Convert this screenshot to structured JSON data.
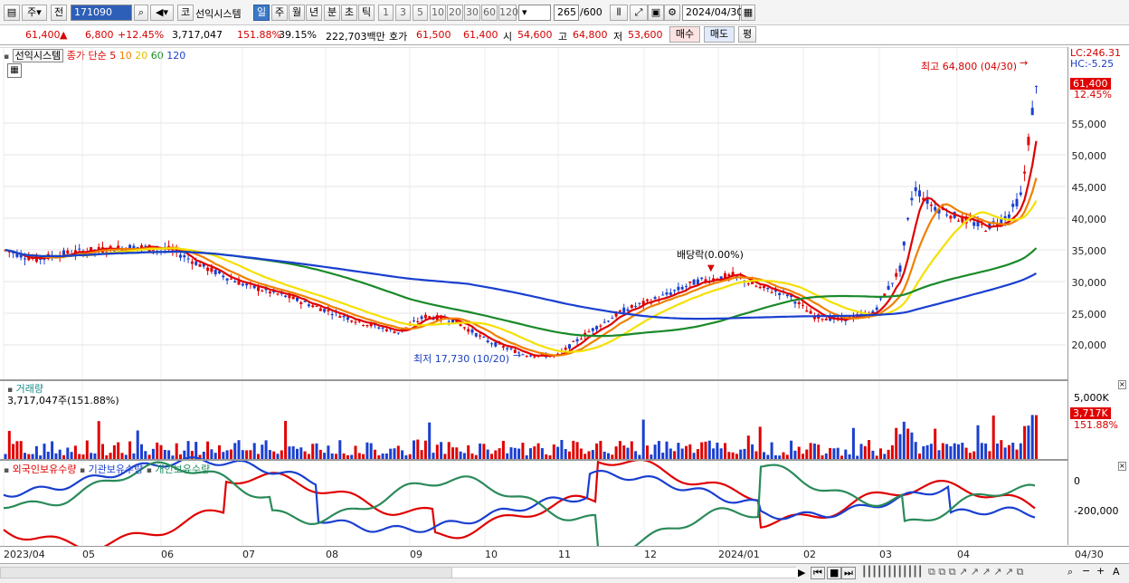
{
  "toolbar": {
    "market": "주",
    "prev_label": "전",
    "code": "171090",
    "kor_label": "코",
    "company": "선익시스템",
    "periods": [
      "일",
      "주",
      "월",
      "년",
      "분",
      "초",
      "틱"
    ],
    "selected_period": "일",
    "intervals": [
      "1",
      "3",
      "5",
      "10",
      "20",
      "30",
      "60",
      "120"
    ],
    "count": "265",
    "count_total": "/600",
    "date": "2024/04/30"
  },
  "quote": {
    "price": "61,400",
    "change": "6,800",
    "change_pct": "+12.45%",
    "volume": "3,717,047",
    "vol_ratio": "151.88%",
    "turnover": "39.15%",
    "amount": "222,703백만",
    "bid_label": "호가",
    "bid1": "61,500",
    "bid2": "61,400",
    "open_label": "시",
    "open": "54,600",
    "high_label": "고",
    "high": "64,800",
    "low_label": "저",
    "low": "53,600",
    "buy": "매수",
    "sell": "매도",
    "avg": "평"
  },
  "legend": {
    "name": "선익시스템",
    "ma_label": "종가 단순",
    "ma_periods": [
      "5",
      "10",
      "20",
      "60",
      "120"
    ],
    "ma_colors": [
      "#e00000",
      "#f08000",
      "#f0d000",
      "#1a8a2a",
      "#1a3fd0"
    ]
  },
  "annotations": {
    "high": "최고 64,800 (04/30)",
    "low": "최저 17,730 (10/20)",
    "dividend": "배당락(0.00%)",
    "lc": "LC:246.31",
    "hc": "HC:-5.25",
    "last_price": "61,400",
    "last_pct": "12.45%"
  },
  "price_axis": [
    "55,000",
    "50,000",
    "45,000",
    "40,000",
    "35,000",
    "30,000",
    "25,000",
    "20,000"
  ],
  "volume": {
    "title": "거래량",
    "value": "3,717,047주(151.88%)",
    "axis_top": "5,000K",
    "last": "3,717K",
    "last_pct": "151.88%"
  },
  "holdings": {
    "foreign": "외국인보유수량",
    "inst": "기관보유수량",
    "retail": "개인보유수량",
    "axis": [
      "0",
      "-200,000"
    ]
  },
  "x_labels": [
    "2023/04",
    "05",
    "06",
    "07",
    "08",
    "09",
    "10",
    "11",
    "12",
    "2024/01",
    "02",
    "03",
    "04"
  ],
  "x_last": "04/30",
  "colors": {
    "up": "#e00000",
    "down": "#1a3fd0",
    "accent": "#3b78c8"
  }
}
